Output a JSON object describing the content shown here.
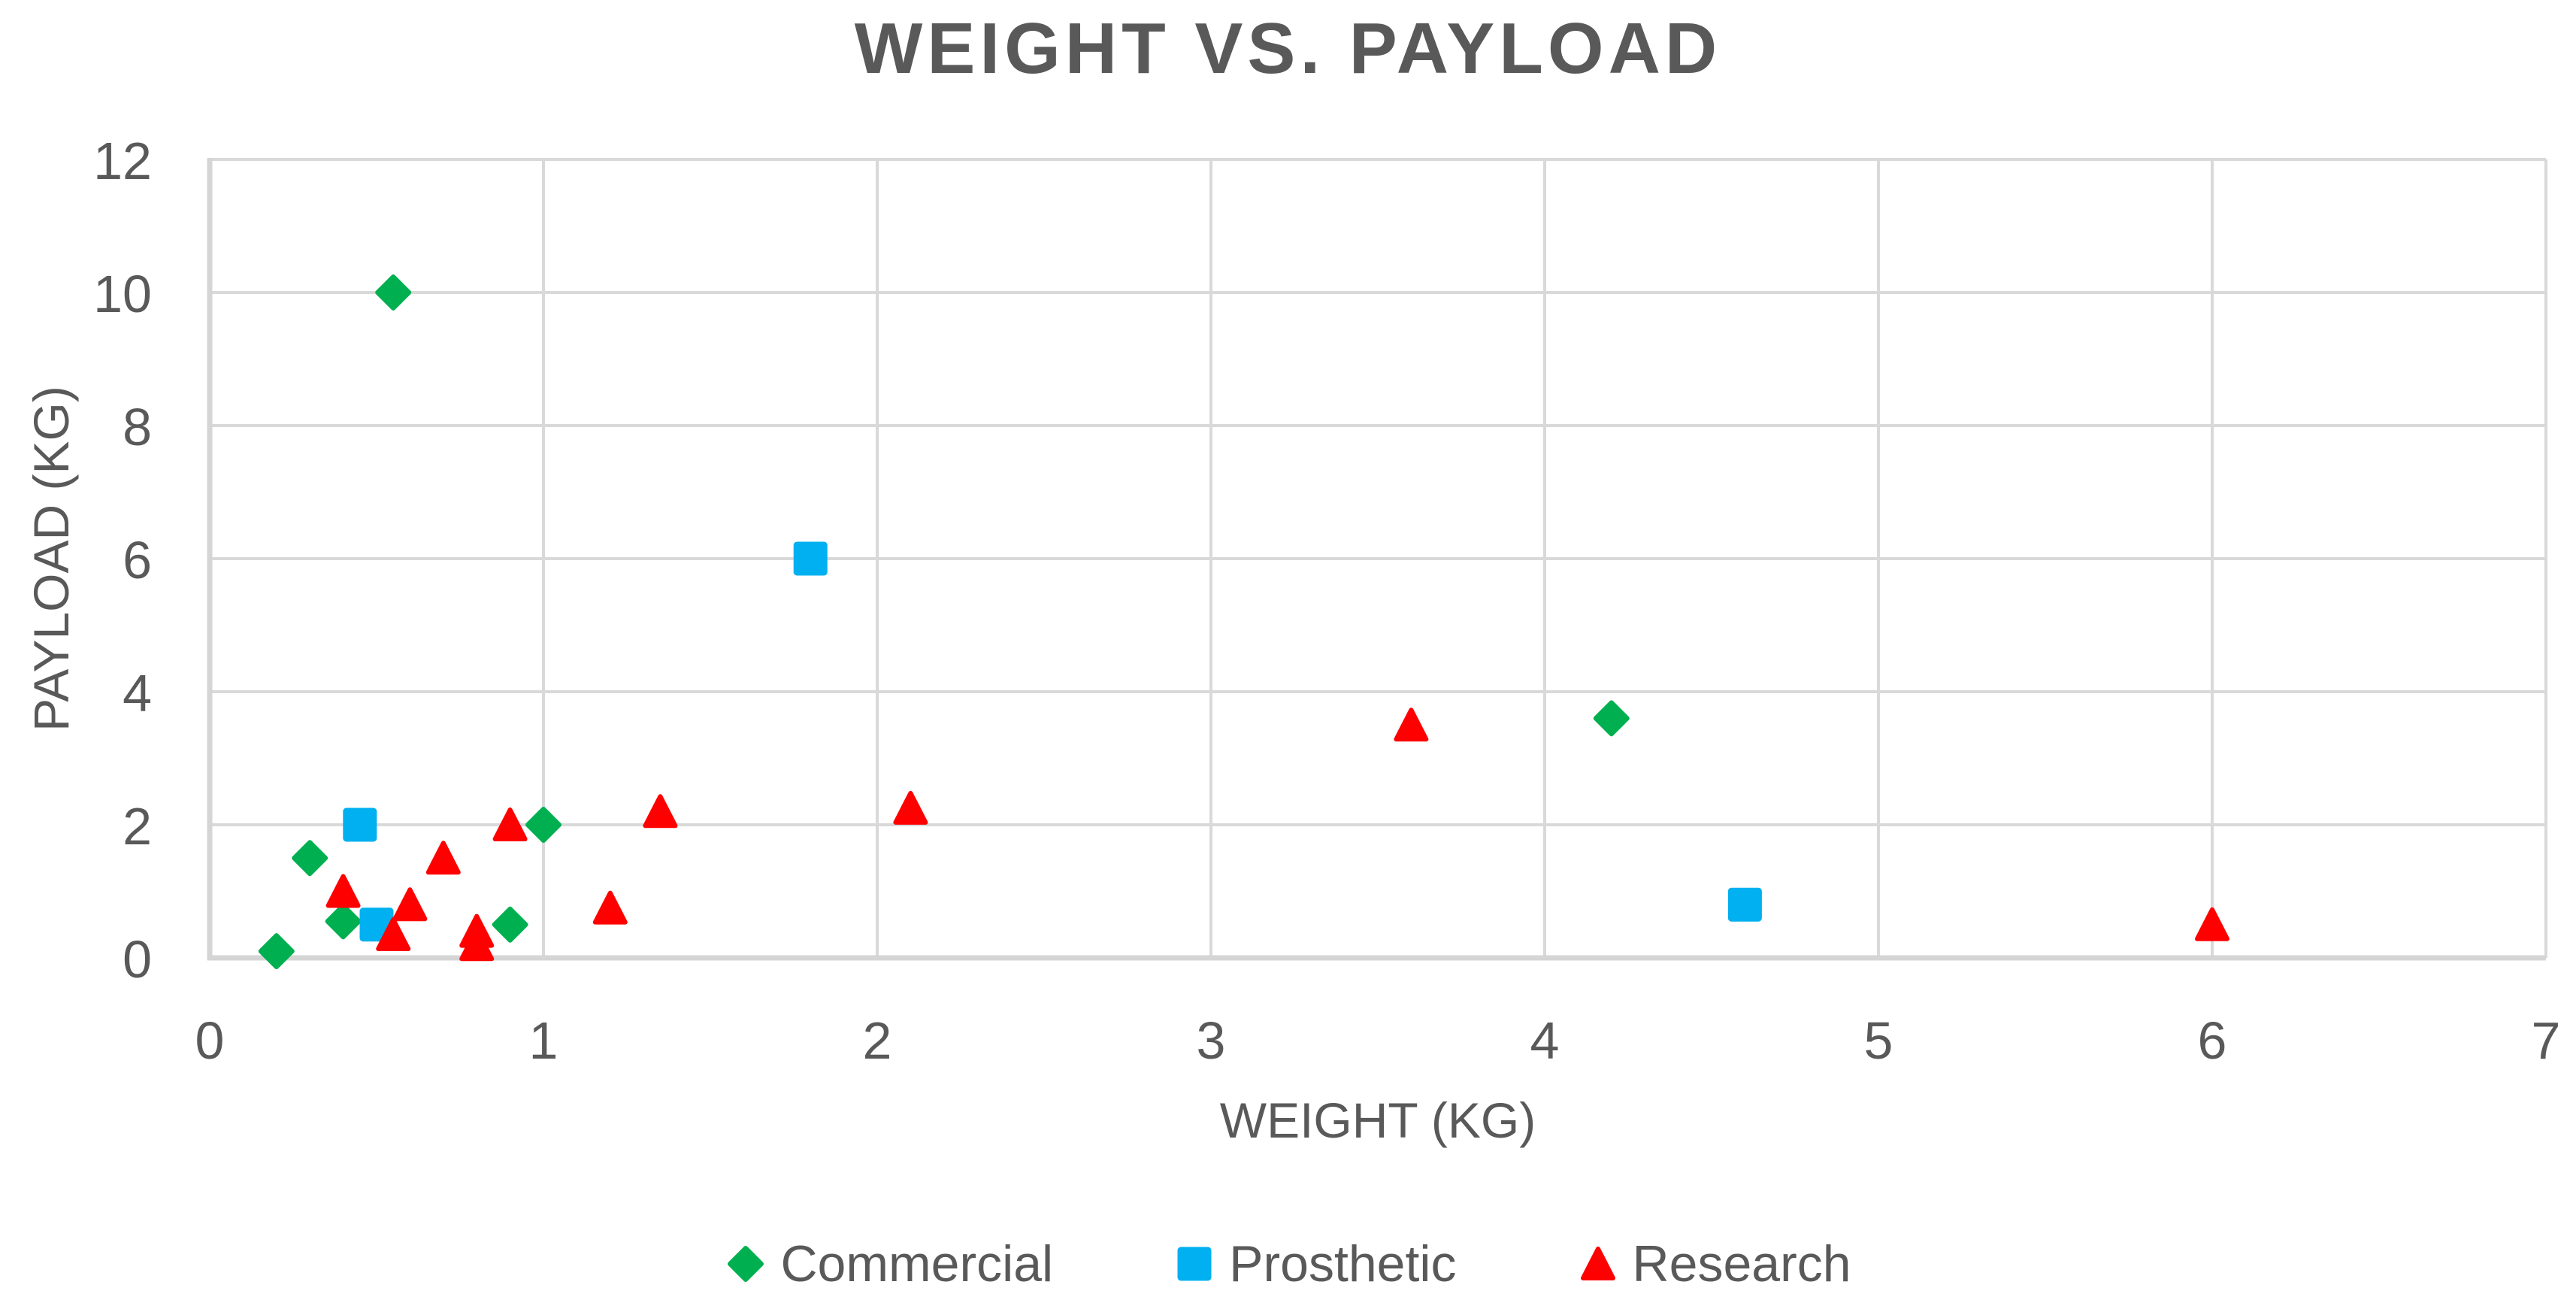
{
  "chart_data": {
    "type": "scatter",
    "title": "WEIGHT VS. PAYLOAD",
    "xlabel": "WEIGHT (KG)",
    "ylabel": "PAYLOAD (KG)",
    "xlim": [
      0,
      7
    ],
    "ylim": [
      0,
      12
    ],
    "xticks": [
      0,
      1,
      2,
      3,
      4,
      5,
      6,
      7
    ],
    "yticks": [
      0,
      2,
      4,
      6,
      8,
      10,
      12
    ],
    "grid": true,
    "legend_position": "bottom",
    "colors": {
      "grid": "#D9D9D9",
      "axis_line": "#D5D5D5",
      "text": "#595959",
      "title": "#595959"
    },
    "series": [
      {
        "name": "Commercial",
        "marker": "diamond",
        "color": "#00B050",
        "points": [
          [
            0.2,
            0.1
          ],
          [
            0.3,
            1.5
          ],
          [
            0.4,
            0.55
          ],
          [
            0.55,
            10
          ],
          [
            0.9,
            0.5
          ],
          [
            1.0,
            2.0
          ],
          [
            4.2,
            3.6
          ]
        ]
      },
      {
        "name": "Prosthetic",
        "marker": "square",
        "color": "#00B0F0",
        "points": [
          [
            0.45,
            2.0
          ],
          [
            0.5,
            0.5
          ],
          [
            1.8,
            6.0
          ],
          [
            4.6,
            0.8
          ]
        ]
      },
      {
        "name": "Research",
        "marker": "triangle",
        "color": "#FF0000",
        "points": [
          [
            0.4,
            1.0
          ],
          [
            0.55,
            0.35
          ],
          [
            0.6,
            0.8
          ],
          [
            0.7,
            1.5
          ],
          [
            0.8,
            0.4
          ],
          [
            0.8,
            0.2
          ],
          [
            0.9,
            2.0
          ],
          [
            1.2,
            0.75
          ],
          [
            1.35,
            2.2
          ],
          [
            2.1,
            2.25
          ],
          [
            3.6,
            3.5
          ],
          [
            6.0,
            0.5
          ]
        ]
      }
    ]
  }
}
